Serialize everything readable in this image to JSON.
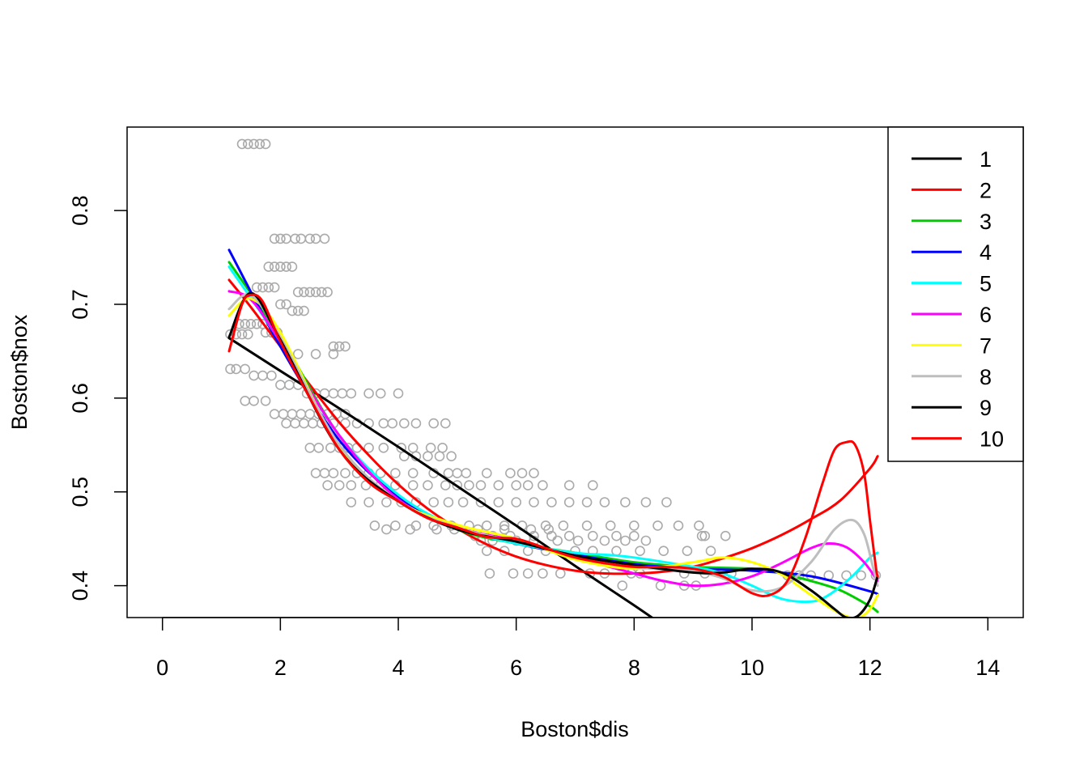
{
  "chart_data": {
    "type": "scatter",
    "xlabel": "Boston$dis",
    "ylabel": "Boston$nox",
    "xlim": [
      -0.6,
      14.6
    ],
    "ylim": [
      0.366,
      0.889
    ],
    "xticks": [
      0,
      2,
      4,
      6,
      8,
      10,
      12,
      14
    ],
    "xtick_labels": [
      "0",
      "2",
      "4",
      "6",
      "8",
      "10",
      "12",
      "14"
    ],
    "yticks": [
      0.4,
      0.5,
      0.6,
      0.7,
      0.8
    ],
    "ytick_labels": [
      "0.4",
      "0.5",
      "0.6",
      "0.7",
      "0.8"
    ],
    "points": {
      "color": "#aaaaaa",
      "x": [
        1.35,
        1.45,
        1.55,
        1.65,
        1.75,
        1.9,
        2.0,
        2.1,
        2.25,
        2.35,
        2.5,
        2.6,
        2.75,
        1.8,
        1.9,
        2.0,
        2.1,
        2.2,
        2.3,
        2.4,
        2.5,
        2.6,
        2.7,
        2.8,
        2.9,
        3.0,
        3.1,
        1.6,
        1.7,
        1.8,
        1.9,
        2.0,
        2.1,
        2.2,
        2.3,
        2.4,
        1.3,
        1.4,
        1.5,
        1.6,
        1.7,
        1.75,
        1.85,
        1.95,
        1.15,
        1.25,
        1.35,
        1.45,
        2.3,
        2.6,
        2.9,
        1.15,
        1.25,
        1.4,
        1.55,
        1.7,
        1.85,
        2.0,
        2.15,
        2.3,
        2.45,
        2.6,
        2.75,
        2.9,
        3.05,
        3.2,
        3.5,
        3.7,
        4.0,
        1.4,
        1.55,
        1.75,
        1.9,
        2.05,
        2.2,
        2.35,
        2.5,
        2.65,
        2.8,
        2.95,
        3.1,
        2.1,
        2.25,
        2.4,
        2.55,
        2.7,
        2.9,
        3.1,
        3.3,
        3.5,
        3.75,
        3.9,
        4.1,
        4.3,
        4.6,
        4.8,
        2.5,
        2.65,
        2.85,
        3.0,
        3.15,
        3.3,
        3.5,
        3.75,
        4.05,
        4.25,
        4.55,
        4.75,
        4.1,
        4.3,
        4.5,
        4.7,
        4.9,
        2.6,
        2.75,
        2.9,
        3.1,
        3.3,
        3.5,
        3.7,
        3.95,
        4.25,
        4.6,
        4.85,
        5.0,
        5.15,
        5.5,
        5.9,
        6.1,
        6.3,
        2.8,
        3.0,
        3.2,
        3.45,
        3.7,
        3.95,
        4.25,
        4.5,
        4.8,
        5.0,
        5.2,
        5.4,
        5.7,
        6.0,
        6.2,
        6.45,
        6.9,
        7.3,
        3.2,
        3.5,
        3.8,
        4.05,
        4.3,
        4.6,
        4.85,
        5.1,
        5.4,
        5.7,
        6.0,
        6.3,
        6.6,
        6.9,
        7.2,
        7.5,
        7.85,
        8.2,
        8.55,
        3.6,
        3.95,
        4.3,
        4.6,
        4.9,
        5.2,
        5.5,
        5.8,
        6.1,
        6.5,
        6.8,
        7.2,
        7.6,
        8.0,
        8.4,
        8.75,
        9.1,
        5.3,
        5.6,
        5.9,
        6.3,
        6.6,
        6.9,
        7.3,
        7.7,
        8.0,
        9.15,
        9.2,
        9.55,
        5.4,
        5.6,
        6.0,
        6.3,
        6.7,
        7.05,
        7.5,
        7.85,
        8.2,
        5.5,
        5.8,
        6.2,
        6.5,
        7.0,
        7.3,
        7.7,
        8.1,
        8.5,
        8.9,
        9.3,
        10.6,
        10.8,
        11.0,
        11.3,
        11.6,
        11.85,
        12.1,
        5.55,
        5.95,
        6.2,
        6.45,
        6.75,
        7.25,
        7.5,
        7.95,
        8.1,
        8.85,
        9.2,
        9.65,
        3.8,
        4.2,
        4.65,
        4.95,
        5.35,
        5.8,
        6.25,
        6.55,
        7.8,
        8.45,
        8.85,
        9.05
      ],
      "y": [
        0.871,
        0.871,
        0.871,
        0.871,
        0.871,
        0.77,
        0.77,
        0.77,
        0.77,
        0.77,
        0.77,
        0.77,
        0.77,
        0.74,
        0.74,
        0.74,
        0.74,
        0.74,
        0.713,
        0.713,
        0.713,
        0.713,
        0.713,
        0.713,
        0.655,
        0.655,
        0.655,
        0.718,
        0.718,
        0.718,
        0.718,
        0.7,
        0.7,
        0.693,
        0.693,
        0.693,
        0.679,
        0.679,
        0.679,
        0.679,
        0.679,
        0.67,
        0.67,
        0.67,
        0.668,
        0.668,
        0.668,
        0.668,
        0.647,
        0.647,
        0.647,
        0.631,
        0.631,
        0.631,
        0.624,
        0.624,
        0.624,
        0.614,
        0.614,
        0.614,
        0.605,
        0.605,
        0.605,
        0.605,
        0.605,
        0.605,
        0.605,
        0.605,
        0.605,
        0.597,
        0.597,
        0.597,
        0.583,
        0.583,
        0.583,
        0.583,
        0.583,
        0.583,
        0.583,
        0.583,
        0.583,
        0.573,
        0.573,
        0.573,
        0.573,
        0.573,
        0.573,
        0.573,
        0.573,
        0.573,
        0.573,
        0.573,
        0.573,
        0.573,
        0.573,
        0.573,
        0.547,
        0.547,
        0.547,
        0.547,
        0.547,
        0.547,
        0.547,
        0.547,
        0.547,
        0.547,
        0.547,
        0.547,
        0.538,
        0.538,
        0.538,
        0.538,
        0.538,
        0.52,
        0.52,
        0.52,
        0.52,
        0.52,
        0.52,
        0.52,
        0.52,
        0.52,
        0.52,
        0.52,
        0.52,
        0.52,
        0.52,
        0.52,
        0.52,
        0.52,
        0.507,
        0.507,
        0.507,
        0.507,
        0.507,
        0.507,
        0.507,
        0.507,
        0.507,
        0.507,
        0.507,
        0.507,
        0.507,
        0.507,
        0.507,
        0.507,
        0.507,
        0.507,
        0.489,
        0.489,
        0.489,
        0.489,
        0.489,
        0.489,
        0.489,
        0.489,
        0.489,
        0.489,
        0.489,
        0.489,
        0.489,
        0.489,
        0.489,
        0.489,
        0.489,
        0.489,
        0.489,
        0.464,
        0.464,
        0.464,
        0.464,
        0.464,
        0.464,
        0.464,
        0.464,
        0.464,
        0.464,
        0.464,
        0.464,
        0.464,
        0.464,
        0.464,
        0.464,
        0.464,
        0.453,
        0.453,
        0.453,
        0.453,
        0.453,
        0.453,
        0.453,
        0.453,
        0.453,
        0.453,
        0.453,
        0.453,
        0.448,
        0.448,
        0.448,
        0.448,
        0.448,
        0.448,
        0.448,
        0.448,
        0.448,
        0.437,
        0.437,
        0.437,
        0.437,
        0.437,
        0.437,
        0.437,
        0.437,
        0.437,
        0.437,
        0.437,
        0.411,
        0.411,
        0.411,
        0.411,
        0.411,
        0.411,
        0.411,
        0.413,
        0.413,
        0.413,
        0.413,
        0.413,
        0.413,
        0.413,
        0.413,
        0.413,
        0.413,
        0.413,
        0.413,
        0.46,
        0.46,
        0.46,
        0.46,
        0.46,
        0.46,
        0.46,
        0.46,
        0.4,
        0.4,
        0.4,
        0.4
      ]
    },
    "series": [
      {
        "name": "1",
        "color": "#000000",
        "x": [
          1.13,
          2,
          3,
          4,
          5,
          6,
          7,
          8,
          8.6
        ],
        "y": [
          0.664,
          0.629,
          0.589,
          0.548,
          0.506,
          0.464,
          0.421,
          0.379,
          0.353
        ]
      },
      {
        "name": "2",
        "color": "#ff0000",
        "x": [
          1.13,
          1.5,
          2,
          2.5,
          3,
          3.5,
          4,
          4.5,
          5,
          5.5,
          6,
          6.5,
          7,
          7.5,
          8,
          8.5,
          9,
          9.5,
          10,
          10.5,
          11,
          11.5,
          12,
          12.13
        ],
        "y": [
          0.726,
          0.697,
          0.655,
          0.614,
          0.574,
          0.539,
          0.508,
          0.482,
          0.461,
          0.444,
          0.431,
          0.422,
          0.416,
          0.413,
          0.413,
          0.415,
          0.42,
          0.429,
          0.44,
          0.454,
          0.471,
          0.491,
          0.525,
          0.538
        ]
      },
      {
        "name": "3",
        "color": "#00cd00",
        "x": [
          1.13,
          2,
          3,
          4,
          5,
          6,
          7,
          8,
          9,
          10,
          10.5,
          11,
          11.5,
          12,
          12.13
        ],
        "y": [
          0.745,
          0.665,
          0.56,
          0.495,
          0.46,
          0.445,
          0.435,
          0.425,
          0.42,
          0.418,
          0.413,
          0.405,
          0.395,
          0.378,
          0.372
        ]
      },
      {
        "name": "4",
        "color": "#0000ff",
        "x": [
          1.13,
          2,
          3,
          4,
          5,
          6,
          7,
          8,
          9,
          10,
          11,
          12,
          12.13
        ],
        "y": [
          0.758,
          0.655,
          0.555,
          0.495,
          0.462,
          0.445,
          0.433,
          0.423,
          0.418,
          0.416,
          0.41,
          0.394,
          0.39
        ]
      },
      {
        "name": "5",
        "color": "#00ffff",
        "x": [
          1.13,
          2,
          3,
          4,
          5,
          6,
          7,
          7.5,
          8,
          9,
          9.5,
          10,
          10.5,
          11,
          11.3,
          11.7,
          12,
          12.13
        ],
        "y": [
          0.74,
          0.66,
          0.56,
          0.497,
          0.462,
          0.445,
          0.435,
          0.433,
          0.43,
          0.42,
          0.413,
          0.4,
          0.386,
          0.383,
          0.39,
          0.41,
          0.43,
          0.435
        ]
      },
      {
        "name": "6",
        "color": "#ff00ff",
        "x": [
          1.13,
          1.5,
          2,
          3,
          4,
          5,
          6,
          7,
          8,
          8.5,
          9,
          9.5,
          10,
          10.5,
          11,
          11.3,
          11.6,
          11.9,
          12.13
        ],
        "y": [
          0.714,
          0.705,
          0.66,
          0.56,
          0.492,
          0.462,
          0.448,
          0.43,
          0.413,
          0.405,
          0.4,
          0.402,
          0.41,
          0.424,
          0.44,
          0.445,
          0.441,
          0.425,
          0.405
        ]
      },
      {
        "name": "7",
        "color": "#ffff00",
        "x": [
          1.13,
          1.5,
          2,
          3,
          4,
          5,
          6,
          7,
          8,
          9,
          9.5,
          10,
          10.5,
          11,
          11.5,
          11.8,
          12,
          12.13
        ],
        "y": [
          0.688,
          0.706,
          0.67,
          0.548,
          0.49,
          0.465,
          0.45,
          0.428,
          0.418,
          0.425,
          0.43,
          0.425,
          0.412,
          0.39,
          0.37,
          0.366,
          0.375,
          0.39
        ]
      },
      {
        "name": "8",
        "color": "#bebebe",
        "x": [
          1.13,
          1.5,
          2,
          3,
          4,
          5,
          6,
          7,
          8,
          8.5,
          9,
          9.5,
          10,
          10.5,
          11,
          11.4,
          11.7,
          11.9,
          12.05,
          12.13
        ],
        "y": [
          0.695,
          0.71,
          0.665,
          0.55,
          0.49,
          0.462,
          0.447,
          0.432,
          0.42,
          0.418,
          0.416,
          0.408,
          0.395,
          0.398,
          0.425,
          0.46,
          0.47,
          0.455,
          0.42,
          0.4
        ]
      },
      {
        "name": "9",
        "color": "#000000",
        "x": [
          1.13,
          1.5,
          2,
          3,
          4,
          5,
          6,
          7,
          8,
          9,
          9.5,
          10,
          10.5,
          11,
          11.4,
          11.6,
          11.8,
          12,
          12.13
        ],
        "y": [
          0.665,
          0.712,
          0.662,
          0.545,
          0.49,
          0.46,
          0.447,
          0.432,
          0.422,
          0.414,
          0.414,
          0.418,
          0.414,
          0.395,
          0.375,
          0.366,
          0.368,
          0.385,
          0.41
        ]
      },
      {
        "name": "10",
        "color": "#ff0000",
        "x": [
          1.13,
          1.35,
          1.5,
          1.7,
          2,
          2.5,
          3,
          3.5,
          4,
          4.5,
          5,
          5.5,
          6,
          6.5,
          7,
          7.5,
          8,
          8.5,
          9,
          9.5,
          10,
          10.3,
          10.6,
          10.9,
          11.2,
          11.4,
          11.6,
          11.75,
          11.9,
          12.0,
          12.1,
          12.13
        ],
        "y": [
          0.65,
          0.7,
          0.71,
          0.703,
          0.66,
          0.6,
          0.545,
          0.51,
          0.49,
          0.472,
          0.462,
          0.452,
          0.45,
          0.44,
          0.43,
          0.424,
          0.42,
          0.42,
          0.418,
          0.41,
          0.392,
          0.39,
          0.405,
          0.45,
          0.51,
          0.545,
          0.553,
          0.55,
          0.52,
          0.47,
          0.42,
          0.41
        ]
      }
    ],
    "legend": {
      "position": "top-right",
      "labels": [
        "1",
        "2",
        "3",
        "4",
        "5",
        "6",
        "7",
        "8",
        "9",
        "10"
      ]
    }
  }
}
